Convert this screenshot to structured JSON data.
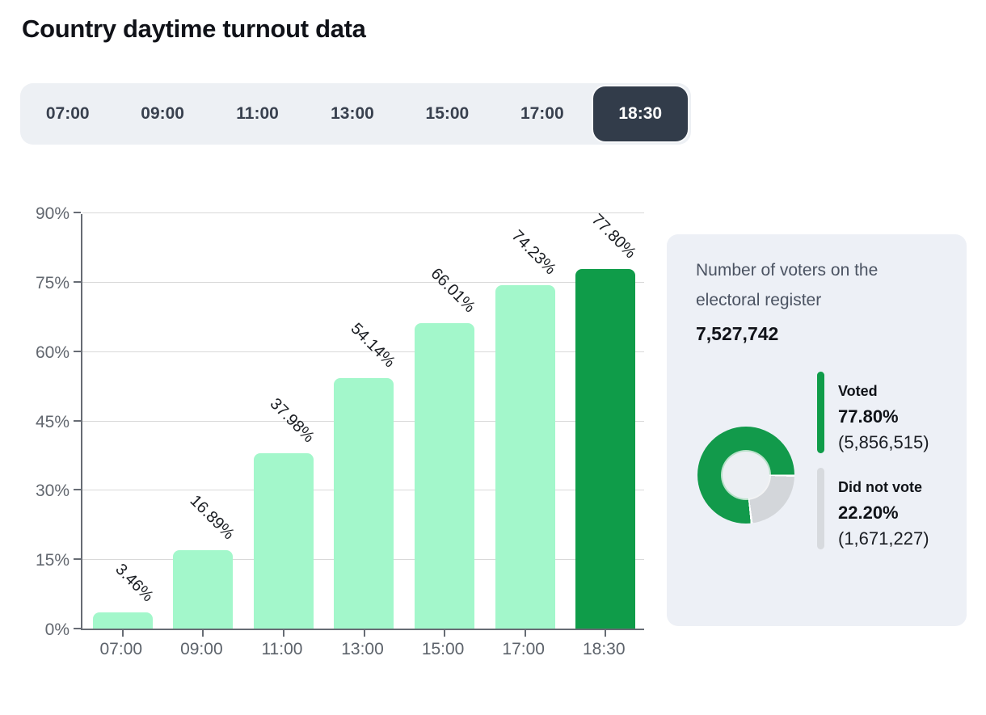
{
  "page": {
    "title": "Country daytime turnout data"
  },
  "time_tabs": {
    "items": [
      "07:00",
      "09:00",
      "11:00",
      "13:00",
      "15:00",
      "17:00",
      "18:30"
    ],
    "selected": "18:30"
  },
  "chart_data": {
    "type": "bar",
    "title": "Country daytime turnout data",
    "categories": [
      "07:00",
      "09:00",
      "11:00",
      "13:00",
      "15:00",
      "17:00",
      "18:30"
    ],
    "values": [
      3.46,
      16.89,
      37.98,
      54.14,
      66.01,
      74.23,
      77.8
    ],
    "value_labels": [
      "3.46%",
      "16.89%",
      "37.98%",
      "54.14%",
      "66.01%",
      "74.23%",
      "77.80%"
    ],
    "xlabel": "",
    "ylabel": "",
    "ylim": [
      0,
      90
    ],
    "ytick_step": 15,
    "yticks": [
      "0%",
      "15%",
      "30%",
      "45%",
      "60%",
      "75%",
      "90%"
    ],
    "grid": true,
    "bar_color": "#a3f7cb",
    "highlight_color": "#0f9c49",
    "highlight_index": 6
  },
  "panel": {
    "register_label": "Number of voters on the electoral register",
    "register_value": "7,527,742",
    "donut": {
      "segments": [
        {
          "name": "Voted",
          "pct": 77.8,
          "color": "#129a4b"
        },
        {
          "name": "Did not vote",
          "pct": 22.2,
          "color": "#d3d6da"
        }
      ]
    },
    "legend": [
      {
        "name": "Voted",
        "pct": "77.80%",
        "count": "(5,856,515)",
        "color": "#0f9c49"
      },
      {
        "name": "Did not vote",
        "pct": "22.20%",
        "count": "(1,671,227)",
        "color": "#d7dade"
      }
    ]
  }
}
